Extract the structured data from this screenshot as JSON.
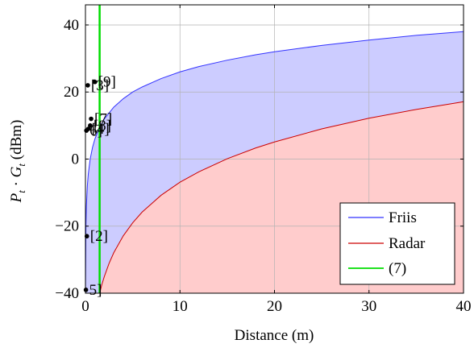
{
  "chart_data": {
    "type": "area",
    "xlabel": "Distance (m)",
    "ylabel_main": "P",
    "ylabel_sub1": "t",
    "ylabel_dot": " · ",
    "ylabel_main2": "G",
    "ylabel_sub2": "t",
    "ylabel_unit": " (dBm)",
    "xlim": [
      0,
      40
    ],
    "ylim": [
      -40,
      46
    ],
    "x_ticks": [
      0,
      10,
      20,
      30,
      40
    ],
    "x_tick_labels": [
      "0",
      "10",
      "20",
      "30",
      "40"
    ],
    "y_ticks": [
      -40,
      -20,
      0,
      20,
      40
    ],
    "y_tick_labels": [
      "−40",
      "−20",
      "0",
      "20",
      "40"
    ],
    "grid": true,
    "legend_position": "bottom-right",
    "series": [
      {
        "name": "Friis",
        "color": "#3333ff",
        "fill": "#ccccff",
        "x": [
          0.05,
          0.1,
          0.2,
          0.3,
          0.5,
          0.75,
          1,
          1.5,
          2,
          3,
          4,
          5,
          6,
          8,
          10,
          12,
          15,
          18,
          20,
          25,
          30,
          35,
          40
        ],
        "y": [
          -20.0,
          -14.0,
          -8.0,
          -4.5,
          0.0,
          3.5,
          6.0,
          9.5,
          12.0,
          15.5,
          18.0,
          20.0,
          21.5,
          24.0,
          26.0,
          27.6,
          29.5,
          31.1,
          32.0,
          33.9,
          35.5,
          36.9,
          38.0
        ]
      },
      {
        "name": "Radar",
        "color": "#cc0000",
        "fill": "#ffcccc",
        "x": [
          1.5,
          1.75,
          2,
          2.5,
          3,
          4,
          5,
          6,
          8,
          10,
          12,
          15,
          18,
          20,
          25,
          30,
          35,
          40
        ],
        "y": [
          -40.0,
          -37.3,
          -35.0,
          -31.1,
          -27.9,
          -22.9,
          -19.0,
          -15.8,
          -10.8,
          -6.9,
          -3.8,
          0.1,
          3.3,
          5.1,
          9.0,
          12.2,
          14.8,
          17.1
        ]
      },
      {
        "name": "(7)",
        "color": "#00dd00",
        "x": [
          1.5,
          1.5
        ],
        "y": [
          -40,
          46
        ]
      }
    ],
    "points": [
      {
        "label": "[3]",
        "x": 0.25,
        "y": 22
      },
      {
        "label": "[9]",
        "x": 1.0,
        "y": 23
      },
      {
        "label": "[7]",
        "x": 0.6,
        "y": 12
      },
      {
        "label": "[8]",
        "x": 0.5,
        "y": 10
      },
      {
        "label": "[4]",
        "x": 0.3,
        "y": 9
      },
      {
        "label": "6]",
        "x": 0.1,
        "y": 8.5
      },
      {
        "label": "[2]",
        "x": 0.15,
        "y": -23
      },
      {
        "label": "5]",
        "x": 0.05,
        "y": -39
      }
    ]
  }
}
